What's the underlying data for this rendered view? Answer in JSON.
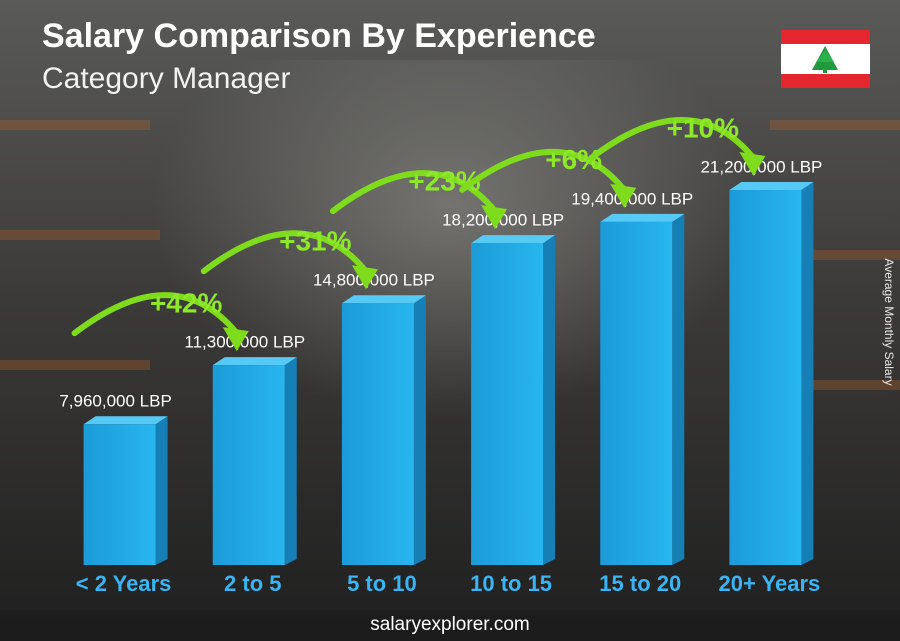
{
  "chart_data": {
    "type": "bar",
    "title": "Salary Comparison By Experience",
    "subtitle": "Category Manager",
    "y_label": "Average Monthly Salary",
    "source": "salaryexplorer.com",
    "categories": [
      "< 2 Years",
      "2 to 5",
      "5 to 10",
      "10 to 15",
      "15 to 20",
      "20+ Years"
    ],
    "values": [
      7960000,
      11300000,
      14800000,
      18200000,
      19400000,
      21200000
    ],
    "value_labels": [
      "7,960,000 LBP",
      "11,300,000 LBP",
      "14,800,000 LBP",
      "18,200,000 LBP",
      "19,400,000 LBP",
      "21,200,000 LBP"
    ],
    "annotations": [
      "+42%",
      "+31%",
      "+23%",
      "+6%",
      "+10%"
    ],
    "color": "#1ea8e4"
  }
}
